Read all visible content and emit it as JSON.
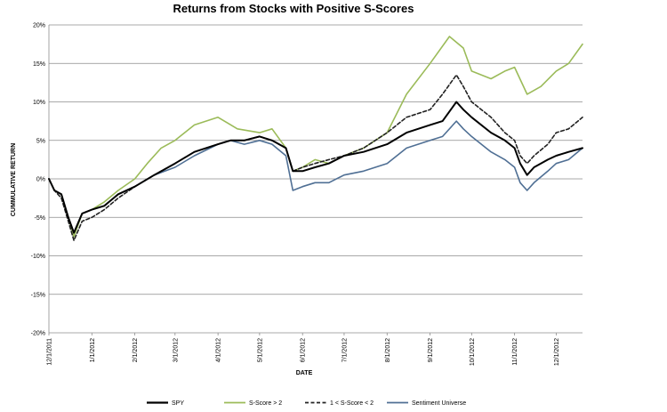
{
  "chart_data": {
    "type": "line",
    "title": "Returns from Stocks with Positive S-Scores",
    "xlabel": "DATE",
    "ylabel": "CUMMULATIVE RETURN",
    "ylim": [
      -20,
      20
    ],
    "yticks": [
      "20%",
      "15%",
      "10%",
      "5%",
      "0%",
      "-5%",
      "-10%",
      "-15%",
      "-20%"
    ],
    "ytick_values": [
      20,
      15,
      10,
      5,
      0,
      -5,
      -10,
      -15,
      -20
    ],
    "x_start": "12/1/2011",
    "x_end": "12/20/2012",
    "xticks": [
      {
        "label": "12/1/2011",
        "date": "12/1/2011"
      },
      {
        "label": "1/1/2012",
        "date": "1/1/2012"
      },
      {
        "label": "2/1/2012",
        "date": "2/1/2012"
      },
      {
        "label": "3/1/2012",
        "date": "3/1/2012"
      },
      {
        "label": "4/1/2012",
        "date": "4/1/2012"
      },
      {
        "label": "5/1/2012",
        "date": "5/1/2012"
      },
      {
        "label": "6/1/2012",
        "date": "6/1/2012"
      },
      {
        "label": "7/1/2012",
        "date": "7/1/2012"
      },
      {
        "label": "8/1/2012",
        "date": "8/1/2012"
      },
      {
        "label": "9/1/2012",
        "date": "9/1/2012"
      },
      {
        "label": "10/1/2012",
        "date": "10/1/2012"
      },
      {
        "label": "11/1/2012",
        "date": "11/1/2012"
      },
      {
        "label": "12/1/2012",
        "date": "12/1/2012"
      }
    ],
    "grid": "horizontal",
    "legend_position": "bottom",
    "series": [
      {
        "name": "SPY",
        "color": "#000000",
        "style": "solid",
        "points": [
          [
            "12/1/2011",
            0
          ],
          [
            "12/5/2011",
            -1.5
          ],
          [
            "12/10/2011",
            -2
          ],
          [
            "12/15/2011",
            -5
          ],
          [
            "12/19/2011",
            -7
          ],
          [
            "12/25/2011",
            -4.5
          ],
          [
            "1/1/2012",
            -4
          ],
          [
            "1/10/2012",
            -3.5
          ],
          [
            "1/20/2012",
            -2
          ],
          [
            "2/1/2012",
            -1
          ],
          [
            "2/15/2012",
            0.5
          ],
          [
            "3/1/2012",
            2
          ],
          [
            "3/15/2012",
            3.5
          ],
          [
            "4/1/2012",
            4.5
          ],
          [
            "4/10/2012",
            5
          ],
          [
            "4/20/2012",
            5
          ],
          [
            "5/1/2012",
            5.5
          ],
          [
            "5/10/2012",
            5
          ],
          [
            "5/20/2012",
            4
          ],
          [
            "5/25/2012",
            1
          ],
          [
            "6/1/2012",
            1
          ],
          [
            "6/10/2012",
            1.5
          ],
          [
            "6/20/2012",
            2
          ],
          [
            "7/1/2012",
            3
          ],
          [
            "7/15/2012",
            3.5
          ],
          [
            "8/1/2012",
            4.5
          ],
          [
            "8/15/2012",
            6
          ],
          [
            "9/1/2012",
            7
          ],
          [
            "9/10/2012",
            7.5
          ],
          [
            "9/20/2012",
            10
          ],
          [
            "9/25/2012",
            9
          ],
          [
            "10/1/2012",
            8
          ],
          [
            "10/15/2012",
            6
          ],
          [
            "10/25/2012",
            5
          ],
          [
            "11/1/2012",
            4
          ],
          [
            "11/5/2012",
            2
          ],
          [
            "11/10/2012",
            0.5
          ],
          [
            "11/15/2012",
            1.5
          ],
          [
            "11/25/2012",
            2.5
          ],
          [
            "12/1/2012",
            3
          ],
          [
            "12/10/2012",
            3.5
          ],
          [
            "12/20/2012",
            4
          ]
        ]
      },
      {
        "name": "S-Score > 2",
        "color": "#9bbb59",
        "style": "solid",
        "points": [
          [
            "12/1/2011",
            0
          ],
          [
            "12/5/2011",
            -1.5
          ],
          [
            "12/10/2011",
            -2
          ],
          [
            "12/15/2011",
            -5
          ],
          [
            "12/19/2011",
            -7.5
          ],
          [
            "12/25/2011",
            -4.5
          ],
          [
            "1/1/2012",
            -4
          ],
          [
            "1/10/2012",
            -3
          ],
          [
            "1/20/2012",
            -1.5
          ],
          [
            "2/1/2012",
            0
          ],
          [
            "2/10/2012",
            2
          ],
          [
            "2/20/2012",
            4
          ],
          [
            "3/1/2012",
            5
          ],
          [
            "3/15/2012",
            7
          ],
          [
            "4/1/2012",
            8
          ],
          [
            "4/15/2012",
            6.5
          ],
          [
            "5/1/2012",
            6
          ],
          [
            "5/10/2012",
            6.5
          ],
          [
            "5/20/2012",
            4
          ],
          [
            "5/25/2012",
            1
          ],
          [
            "6/1/2012",
            1.5
          ],
          [
            "6/10/2012",
            2.5
          ],
          [
            "6/20/2012",
            2
          ],
          [
            "7/1/2012",
            3
          ],
          [
            "7/15/2012",
            4
          ],
          [
            "8/1/2012",
            6
          ],
          [
            "8/15/2012",
            11
          ],
          [
            "9/1/2012",
            15
          ],
          [
            "9/15/2012",
            18.5
          ],
          [
            "9/25/2012",
            17
          ],
          [
            "10/1/2012",
            14
          ],
          [
            "10/15/2012",
            13
          ],
          [
            "10/25/2012",
            14
          ],
          [
            "11/1/2012",
            14.5
          ],
          [
            "11/10/2012",
            11
          ],
          [
            "11/20/2012",
            12
          ],
          [
            "12/1/2012",
            14
          ],
          [
            "12/10/2012",
            15
          ],
          [
            "12/20/2012",
            17.5
          ]
        ]
      },
      {
        "name": "1 < S-Score < 2",
        "color": "#222222",
        "style": "dashed",
        "points": [
          [
            "12/1/2011",
            0
          ],
          [
            "12/5/2011",
            -1.5
          ],
          [
            "12/10/2011",
            -2.5
          ],
          [
            "12/15/2011",
            -5.5
          ],
          [
            "12/19/2011",
            -8
          ],
          [
            "12/25/2011",
            -5.5
          ],
          [
            "1/1/2012",
            -5
          ],
          [
            "1/10/2012",
            -4
          ],
          [
            "1/20/2012",
            -2.5
          ],
          [
            "2/1/2012",
            -1
          ],
          [
            "2/15/2012",
            0.5
          ],
          [
            "3/1/2012",
            2
          ],
          [
            "3/15/2012",
            3.5
          ],
          [
            "4/1/2012",
            4.5
          ],
          [
            "4/10/2012",
            5
          ],
          [
            "4/20/2012",
            5
          ],
          [
            "5/1/2012",
            5.5
          ],
          [
            "5/10/2012",
            5
          ],
          [
            "5/20/2012",
            4
          ],
          [
            "5/25/2012",
            1
          ],
          [
            "6/1/2012",
            1.5
          ],
          [
            "6/10/2012",
            2
          ],
          [
            "6/20/2012",
            2.5
          ],
          [
            "7/1/2012",
            3
          ],
          [
            "7/15/2012",
            4
          ],
          [
            "8/1/2012",
            6
          ],
          [
            "8/15/2012",
            8
          ],
          [
            "9/1/2012",
            9
          ],
          [
            "9/10/2012",
            11
          ],
          [
            "9/20/2012",
            13.5
          ],
          [
            "9/25/2012",
            12
          ],
          [
            "10/1/2012",
            10
          ],
          [
            "10/15/2012",
            8
          ],
          [
            "10/25/2012",
            6
          ],
          [
            "11/1/2012",
            5
          ],
          [
            "11/5/2012",
            3
          ],
          [
            "11/10/2012",
            2
          ],
          [
            "11/15/2012",
            3
          ],
          [
            "11/25/2012",
            4.5
          ],
          [
            "12/1/2012",
            6
          ],
          [
            "12/10/2012",
            6.5
          ],
          [
            "12/20/2012",
            8
          ]
        ]
      },
      {
        "name": "Sentiment Universe",
        "color": "#4f6f94",
        "style": "solid",
        "points": [
          [
            "12/1/2011",
            0
          ],
          [
            "12/5/2011",
            -1.5
          ],
          [
            "12/10/2011",
            -2
          ],
          [
            "12/15/2011",
            -5
          ],
          [
            "12/19/2011",
            -7
          ],
          [
            "12/25/2011",
            -4.5
          ],
          [
            "1/1/2012",
            -4
          ],
          [
            "1/10/2012",
            -3.5
          ],
          [
            "1/20/2012",
            -2
          ],
          [
            "2/1/2012",
            -1
          ],
          [
            "2/15/2012",
            0.5
          ],
          [
            "3/1/2012",
            1.5
          ],
          [
            "3/15/2012",
            3
          ],
          [
            "4/1/2012",
            4.5
          ],
          [
            "4/10/2012",
            5
          ],
          [
            "4/20/2012",
            4.5
          ],
          [
            "5/1/2012",
            5
          ],
          [
            "5/10/2012",
            4.5
          ],
          [
            "5/20/2012",
            3
          ],
          [
            "5/25/2012",
            -1.5
          ],
          [
            "6/1/2012",
            -1
          ],
          [
            "6/10/2012",
            -0.5
          ],
          [
            "6/20/2012",
            -0.5
          ],
          [
            "7/1/2012",
            0.5
          ],
          [
            "7/15/2012",
            1
          ],
          [
            "8/1/2012",
            2
          ],
          [
            "8/15/2012",
            4
          ],
          [
            "9/1/2012",
            5
          ],
          [
            "9/10/2012",
            5.5
          ],
          [
            "9/20/2012",
            7.5
          ],
          [
            "9/25/2012",
            6.5
          ],
          [
            "10/1/2012",
            5.5
          ],
          [
            "10/15/2012",
            3.5
          ],
          [
            "10/25/2012",
            2.5
          ],
          [
            "11/1/2012",
            1.5
          ],
          [
            "11/5/2012",
            -0.5
          ],
          [
            "11/10/2012",
            -1.5
          ],
          [
            "11/15/2012",
            -0.5
          ],
          [
            "11/25/2012",
            1
          ],
          [
            "12/1/2012",
            2
          ],
          [
            "12/10/2012",
            2.5
          ],
          [
            "12/20/2012",
            4
          ]
        ]
      }
    ]
  }
}
